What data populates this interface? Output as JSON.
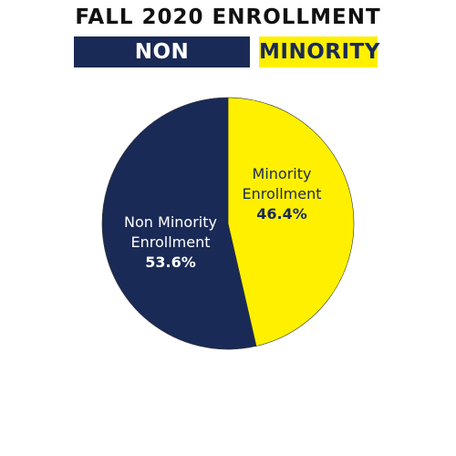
{
  "chart_data": {
    "type": "pie",
    "title": "FALL 2020 ENROLLMENT",
    "legend": [
      {
        "label": "NON MINORITY",
        "color": "#1a2a56",
        "text_color": "#ffffff"
      },
      {
        "label": "MINORITY",
        "color": "#fff000",
        "text_color": "#1a2a56"
      }
    ],
    "slices": [
      {
        "label_line1": "Minority",
        "label_line2": "Enrollment",
        "value_label": "46.4%",
        "value": 46.4,
        "color": "#fff000",
        "text_color": "#1a2a56"
      },
      {
        "label_line1": "Non Minority",
        "label_line2": "Enrollment",
        "value_label": "53.6%",
        "value": 53.6,
        "color": "#1a2a56",
        "text_color": "#ffffff"
      }
    ]
  }
}
